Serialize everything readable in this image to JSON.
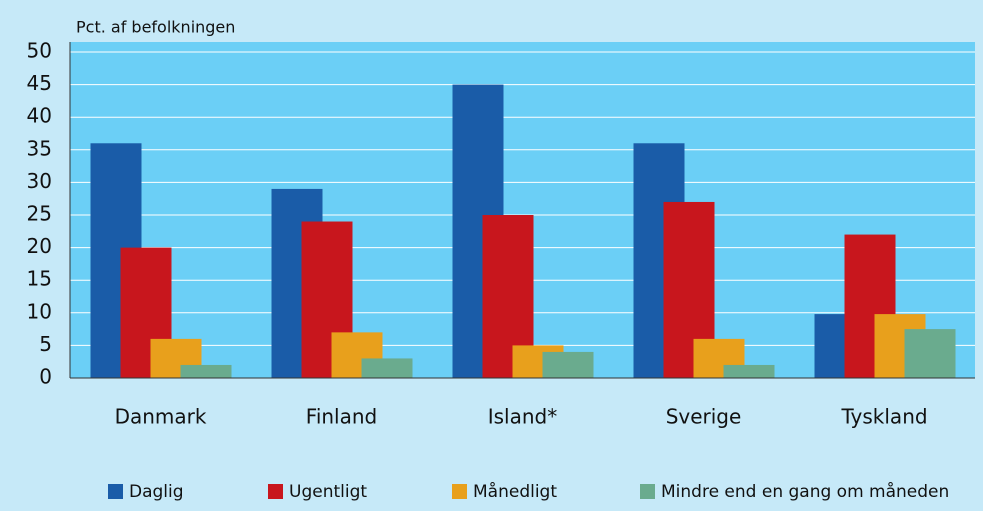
{
  "chart_data": {
    "type": "bar",
    "y_label": "Pct. af befolkningen",
    "categories": [
      "Danmark",
      "Finland",
      "Island*",
      "Sverige",
      "Tyskland"
    ],
    "series": [
      {
        "name": "Daglig",
        "color": "#1a5ca8",
        "values": [
          36,
          29,
          45,
          36,
          9.8
        ]
      },
      {
        "name": "Ugentligt",
        "color": "#c8161d",
        "values": [
          20,
          24,
          25,
          27,
          22
        ]
      },
      {
        "name": "Månedligt",
        "color": "#e8a01c",
        "values": [
          6,
          7,
          5,
          6,
          9.8
        ]
      },
      {
        "name": "Mindre end en gang om måneden",
        "color": "#6aab8e",
        "values": [
          2,
          3,
          4,
          2,
          7.5
        ]
      }
    ],
    "ylim": [
      0,
      50
    ],
    "yticks": [
      0,
      5,
      10,
      15,
      20,
      25,
      30,
      35,
      40,
      45,
      50
    ],
    "grid": true
  }
}
